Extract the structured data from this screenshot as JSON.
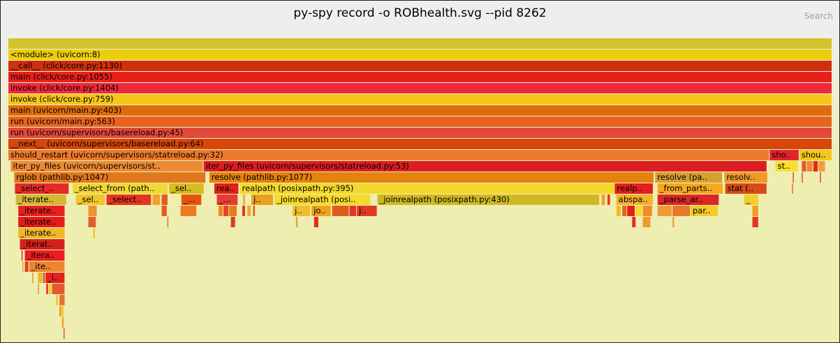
{
  "header": {
    "title": "py-spy record -o ROBhealth.svg --pid 8262",
    "search_label": "Search"
  },
  "chart_data": {
    "type": "flamegraph",
    "total_samples": 1000,
    "frames": [
      {
        "d": 0,
        "s": 0,
        "w": 1000,
        "label": "",
        "c": "#d2c22c"
      },
      {
        "d": 1,
        "s": 0,
        "w": 1000,
        "label": "<module> (uvicorn:8)",
        "c": "#eccd0e"
      },
      {
        "d": 2,
        "s": 0,
        "w": 1000,
        "label": "__call__ (click/core.py:1130)",
        "c": "#d1300c"
      },
      {
        "d": 3,
        "s": 0,
        "w": 1000,
        "label": "main (click/core.py:1055)",
        "c": "#e8201c"
      },
      {
        "d": 4,
        "s": 0,
        "w": 1000,
        "label": "invoke (click/core.py:1404)",
        "c": "#ee2a3a"
      },
      {
        "d": 5,
        "s": 0,
        "w": 1000,
        "label": "invoke (click/core.py:759)",
        "c": "#f5c61a"
      },
      {
        "d": 6,
        "s": 0,
        "w": 1000,
        "label": "main (uvicorn/main.py:403)",
        "c": "#de6c0e"
      },
      {
        "d": 7,
        "s": 0,
        "w": 1000,
        "label": "run (uvicorn/main.py:563)",
        "c": "#e8641e"
      },
      {
        "d": 8,
        "s": 0,
        "w": 1000,
        "label": "run (uvicorn/supervisors/basereload.py:45)",
        "c": "#e04a3a"
      },
      {
        "d": 9,
        "s": 0,
        "w": 1000,
        "label": "__next__ (uvicorn/supervisors/basereload.py:64)",
        "c": "#d8460a"
      },
      {
        "d": 10,
        "s": 0,
        "w": 924,
        "label": "should_restart (uvicorn/supervisors/statreload.py:32)",
        "c": "#ea7a2c"
      },
      {
        "d": 10,
        "s": 924,
        "w": 36,
        "label": "sho..",
        "c": "#e4242a"
      },
      {
        "d": 10,
        "s": 960,
        "w": 40,
        "label": "shou..",
        "c": "#f2c81e"
      },
      {
        "d": 11,
        "s": 3,
        "w": 234,
        "label": "iter_py_files (uvicorn/supervisors/st..",
        "c": "#ee8a34"
      },
      {
        "d": 11,
        "s": 237,
        "w": 684,
        "label": "iter_py_files (uvicorn/supervisors/statreload.py:53)",
        "c": "#dc1e22"
      },
      {
        "d": 11,
        "s": 931,
        "w": 28,
        "label": "st..",
        "c": "#f6e02e"
      },
      {
        "d": 11,
        "s": 963,
        "w": 6,
        "label": "",
        "c": "#e25a2a"
      },
      {
        "d": 11,
        "s": 969,
        "w": 8,
        "label": "",
        "c": "#ee8a34"
      },
      {
        "d": 11,
        "s": 977,
        "w": 6,
        "label": "",
        "c": "#e02a18"
      },
      {
        "d": 11,
        "s": 983,
        "w": 9,
        "label": "",
        "c": "#f0a040"
      },
      {
        "d": 12,
        "s": 7,
        "w": 233,
        "label": "rglob (pathlib.py:1047)",
        "c": "#e0781e"
      },
      {
        "d": 12,
        "s": 244,
        "w": 540,
        "label": "resolve (pathlib.py:1077)",
        "c": "#e4820e"
      },
      {
        "d": 12,
        "s": 785,
        "w": 82,
        "label": "resolve (pa..",
        "c": "#d4a030"
      },
      {
        "d": 12,
        "s": 869,
        "w": 53,
        "label": "resolv..",
        "c": "#ee9a2c"
      },
      {
        "d": 12,
        "s": 952,
        "w": 2,
        "label": "",
        "c": "#e2401e"
      },
      {
        "d": 12,
        "s": 963,
        "w": 2,
        "label": "",
        "c": "#e8401e"
      },
      {
        "d": 12,
        "s": 985,
        "w": 2,
        "label": "",
        "c": "#e63a2a"
      },
      {
        "d": 13,
        "s": 8,
        "w": 66,
        "label": "_select_..",
        "c": "#e62a26"
      },
      {
        "d": 13,
        "s": 78,
        "w": 116,
        "label": "_select_from (path..",
        "c": "#f2d836"
      },
      {
        "d": 13,
        "s": 195,
        "w": 43,
        "label": "_sel..",
        "c": "#d8bc20"
      },
      {
        "d": 13,
        "s": 250,
        "w": 30,
        "label": "rea..",
        "c": "#e0201a"
      },
      {
        "d": 13,
        "s": 281,
        "w": 462,
        "label": "realpath (posixpath.py:395)",
        "c": "#f3d82e"
      },
      {
        "d": 13,
        "s": 736,
        "w": 47,
        "label": "realp..",
        "c": "#e32020"
      },
      {
        "d": 13,
        "s": 788,
        "w": 80,
        "label": "_from_parts..",
        "c": "#f6a820"
      },
      {
        "d": 13,
        "s": 870,
        "w": 51,
        "label": "stat (..",
        "c": "#d84a1c"
      },
      {
        "d": 13,
        "s": 951,
        "w": 2,
        "label": "",
        "c": "#e7671e"
      },
      {
        "d": 14,
        "s": 9,
        "w": 62,
        "label": "_iterate..",
        "c": "#d4b836"
      },
      {
        "d": 14,
        "s": 82,
        "w": 36,
        "label": "_sel..",
        "c": "#f4c62a"
      },
      {
        "d": 14,
        "s": 119,
        "w": 55,
        "label": "_select..",
        "c": "#e63420"
      },
      {
        "d": 14,
        "s": 175,
        "w": 10,
        "label": "",
        "c": "#f4a22a"
      },
      {
        "d": 14,
        "s": 186,
        "w": 8,
        "label": "",
        "c": "#e25a24"
      },
      {
        "d": 14,
        "s": 210,
        "w": 25,
        "label": "_...",
        "c": "#e9520e"
      },
      {
        "d": 14,
        "s": 253,
        "w": 26,
        "label": "_...",
        "c": "#e63a34"
      },
      {
        "d": 14,
        "s": 285,
        "w": 3,
        "label": "",
        "c": "#f1a232"
      },
      {
        "d": 14,
        "s": 295,
        "w": 27,
        "label": "j..",
        "c": "#e8a01e"
      },
      {
        "d": 14,
        "s": 323,
        "w": 117,
        "label": "_joinrealpath (posi..",
        "c": "#f5da2a"
      },
      {
        "d": 14,
        "s": 448,
        "w": 270,
        "label": "_joinrealpath (posixpath.py:430)",
        "c": "#d0b824"
      },
      {
        "d": 14,
        "s": 720,
        "w": 5,
        "label": "",
        "c": "#f4a124"
      },
      {
        "d": 14,
        "s": 727,
        "w": 4,
        "label": "",
        "c": "#e53d14"
      },
      {
        "d": 14,
        "s": 738,
        "w": 45,
        "label": "abspa..",
        "c": "#f5b22c"
      },
      {
        "d": 14,
        "s": 788,
        "w": 75,
        "label": "_parse_ar..",
        "c": "#dd2626"
      },
      {
        "d": 14,
        "s": 893,
        "w": 18,
        "label": "_",
        "c": "#f2cd2e"
      },
      {
        "d": 15,
        "s": 12,
        "w": 57,
        "label": "_iterate..",
        "c": "#e92020"
      },
      {
        "d": 15,
        "s": 97,
        "w": 11,
        "label": "",
        "c": "#f0922e"
      },
      {
        "d": 15,
        "s": 186,
        "w": 7,
        "label": "",
        "c": "#e45a22"
      },
      {
        "d": 15,
        "s": 209,
        "w": 20,
        "label": "",
        "c": "#ee7a20"
      },
      {
        "d": 15,
        "s": 255,
        "w": 6,
        "label": "",
        "c": "#f08624"
      },
      {
        "d": 15,
        "s": 261,
        "w": 7,
        "label": "",
        "c": "#e64426"
      },
      {
        "d": 15,
        "s": 268,
        "w": 10,
        "label": "",
        "c": "#e07d1c"
      },
      {
        "d": 15,
        "s": 284,
        "w": 4,
        "label": "",
        "c": "#e42a1a"
      },
      {
        "d": 15,
        "s": 290,
        "w": 5,
        "label": "",
        "c": "#f0a82c"
      },
      {
        "d": 15,
        "s": 297,
        "w": 3,
        "label": "",
        "c": "#e05a26"
      },
      {
        "d": 15,
        "s": 345,
        "w": 22,
        "label": "j..",
        "c": "#eebe2e"
      },
      {
        "d": 15,
        "s": 368,
        "w": 24,
        "label": "jo..",
        "c": "#f0a020"
      },
      {
        "d": 15,
        "s": 393,
        "w": 21,
        "label": "",
        "c": "#e05c1a"
      },
      {
        "d": 15,
        "s": 414,
        "w": 9,
        "label": "",
        "c": "#e2342a"
      },
      {
        "d": 15,
        "s": 423,
        "w": 25,
        "label": "j..",
        "c": "#e03a22"
      },
      {
        "d": 15,
        "s": 738,
        "w": 6,
        "label": "",
        "c": "#f2b82c"
      },
      {
        "d": 15,
        "s": 745,
        "w": 6,
        "label": "",
        "c": "#e3661e"
      },
      {
        "d": 15,
        "s": 751,
        "w": 10,
        "label": "",
        "c": "#e81d17"
      },
      {
        "d": 15,
        "s": 761,
        "w": 9,
        "label": "",
        "c": "#f5d834"
      },
      {
        "d": 15,
        "s": 770,
        "w": 12,
        "label": "",
        "c": "#f08c24"
      },
      {
        "d": 15,
        "s": 788,
        "w": 18,
        "label": "",
        "c": "#ef9a3a"
      },
      {
        "d": 15,
        "s": 806,
        "w": 22,
        "label": "",
        "c": "#e7782a"
      },
      {
        "d": 15,
        "s": 828,
        "w": 34,
        "label": "par..",
        "c": "#f6ca28"
      },
      {
        "d": 15,
        "s": 903,
        "w": 8,
        "label": "",
        "c": "#f09a28"
      },
      {
        "d": 16,
        "s": 12,
        "w": 57,
        "label": "_iterate..",
        "c": "#e41c1c"
      },
      {
        "d": 16,
        "s": 97,
        "w": 10,
        "label": "",
        "c": "#e0602c"
      },
      {
        "d": 16,
        "s": 193,
        "w": 2,
        "label": "",
        "c": "#e26a28"
      },
      {
        "d": 16,
        "s": 270,
        "w": 6,
        "label": "",
        "c": "#e03a22"
      },
      {
        "d": 16,
        "s": 349,
        "w": 3,
        "label": "",
        "c": "#ef9d39"
      },
      {
        "d": 16,
        "s": 371,
        "w": 6,
        "label": "",
        "c": "#e42e22"
      },
      {
        "d": 16,
        "s": 757,
        "w": 5,
        "label": "",
        "c": "#e72a2a"
      },
      {
        "d": 16,
        "s": 770,
        "w": 10,
        "label": "",
        "c": "#ef9a2f"
      },
      {
        "d": 16,
        "s": 806,
        "w": 3,
        "label": "",
        "c": "#f2a234"
      },
      {
        "d": 16,
        "s": 903,
        "w": 8,
        "label": "",
        "c": "#e23626"
      },
      {
        "d": 17,
        "s": 12,
        "w": 57,
        "label": "_iterate..",
        "c": "#f0b828"
      },
      {
        "d": 17,
        "s": 103,
        "w": 3,
        "label": "",
        "c": "#f2c42a"
      },
      {
        "d": 18,
        "s": 14,
        "w": 55,
        "label": "_iterat..",
        "c": "#d4201c"
      },
      {
        "d": 19,
        "s": 16,
        "w": 2,
        "label": "",
        "c": "#e0201c"
      },
      {
        "d": 19,
        "s": 20,
        "w": 49,
        "label": "_itera..",
        "c": "#ea1e1e"
      },
      {
        "d": 20,
        "s": 17,
        "w": 2,
        "label": "",
        "c": "#f09330"
      },
      {
        "d": 20,
        "s": 20,
        "w": 5,
        "label": "",
        "c": "#e33d22"
      },
      {
        "d": 20,
        "s": 25,
        "w": 44,
        "label": "_ite..",
        "c": "#ee8630"
      },
      {
        "d": 21,
        "s": 29,
        "w": 2,
        "label": "",
        "c": "#ee8a2e"
      },
      {
        "d": 21,
        "s": 36,
        "w": 6,
        "label": "",
        "c": "#e7b82c"
      },
      {
        "d": 21,
        "s": 42,
        "w": 3,
        "label": "",
        "c": "#e34a1e"
      },
      {
        "d": 21,
        "s": 45,
        "w": 24,
        "label": "_i..",
        "c": "#e4221e"
      },
      {
        "d": 22,
        "s": 36,
        "w": 2,
        "label": "",
        "c": "#ee8a2a"
      },
      {
        "d": 22,
        "s": 46,
        "w": 3,
        "label": "",
        "c": "#e82a24"
      },
      {
        "d": 22,
        "s": 49,
        "w": 4,
        "label": "",
        "c": "#f5cd28"
      },
      {
        "d": 22,
        "s": 53,
        "w": 16,
        "label": "",
        "c": "#e5582c"
      },
      {
        "d": 23,
        "s": 58,
        "w": 3,
        "label": "",
        "c": "#f2c030"
      },
      {
        "d": 23,
        "s": 62,
        "w": 7,
        "label": "",
        "c": "#e7702e"
      },
      {
        "d": 24,
        "s": 62,
        "w": 3,
        "label": "",
        "c": "#ee8a26"
      },
      {
        "d": 24,
        "s": 65,
        "w": 3,
        "label": "",
        "c": "#f2c62e"
      },
      {
        "d": 25,
        "s": 65,
        "w": 3,
        "label": "",
        "c": "#f0a02a"
      },
      {
        "d": 26,
        "s": 67,
        "w": 2,
        "label": "",
        "c": "#e3442a"
      }
    ]
  }
}
